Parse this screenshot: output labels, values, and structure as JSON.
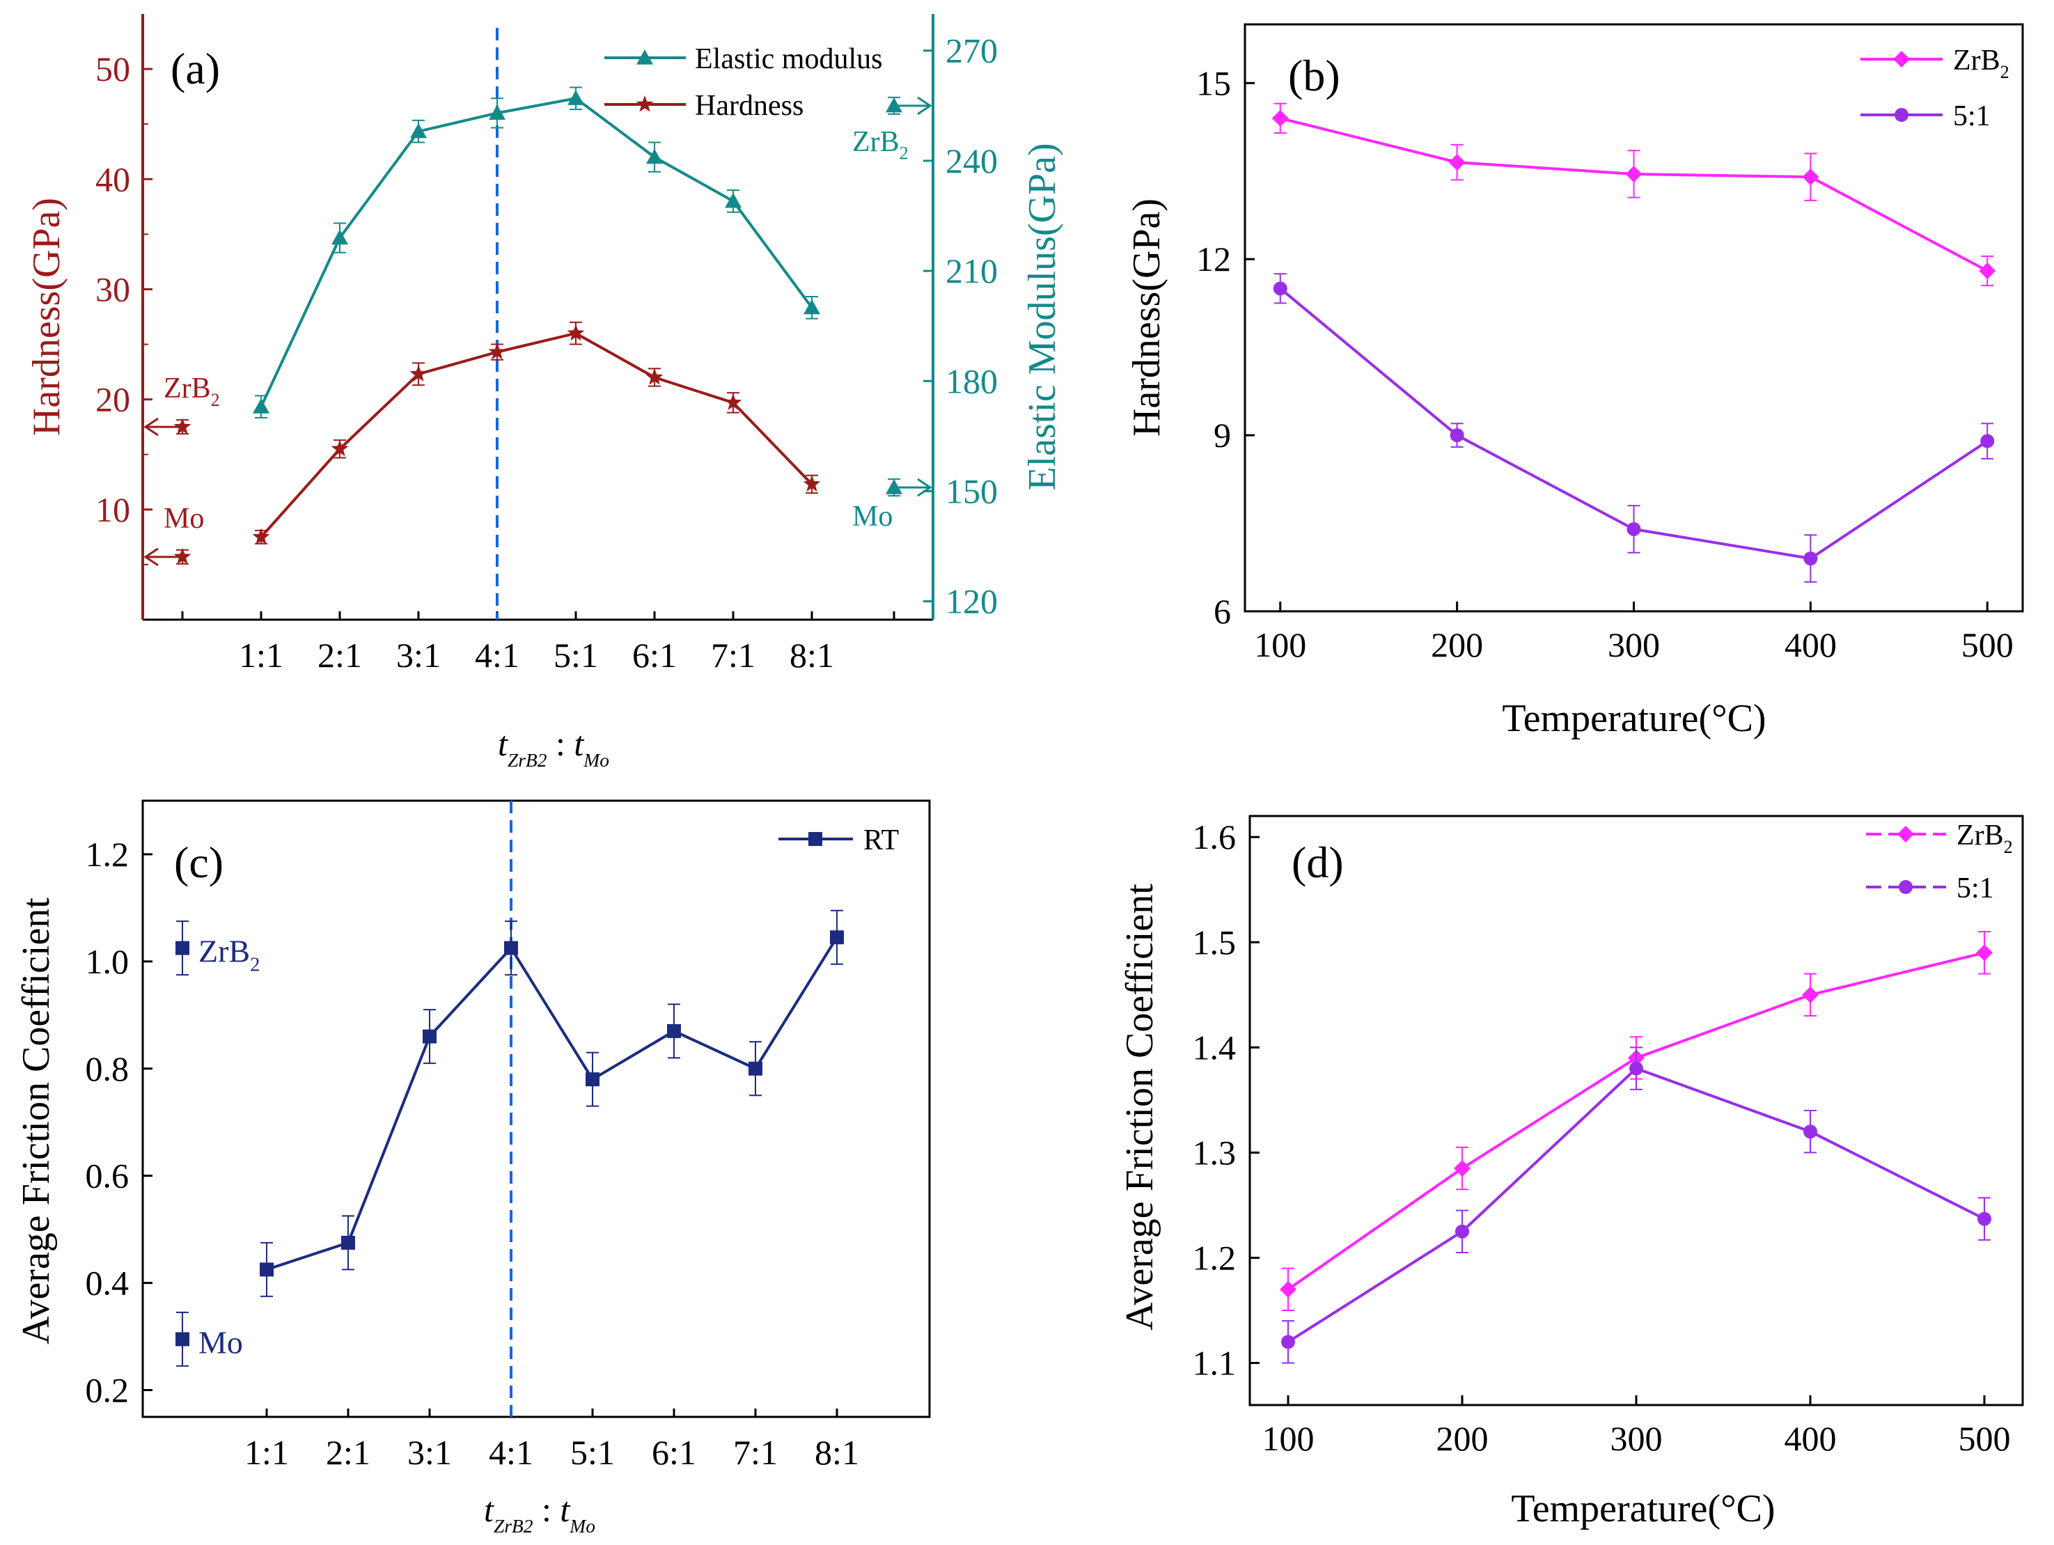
{
  "colors": {
    "hardness": "#9b1b1b",
    "modulus": "#138a8a",
    "zrb2": "#ff26ff",
    "ratio51": "#9a2ee6",
    "rt": "#1c2b80",
    "vline": "#1565e0",
    "axis": "#000000"
  },
  "chart_data": [
    {
      "panel": "a",
      "type": "line",
      "panel_label": "(a)",
      "categories": [
        "1:1",
        "2:1",
        "3:1",
        "4:1",
        "5:1",
        "6:1",
        "7:1",
        "8:1"
      ],
      "xlabel": "t_ZrB2 : t_Mo",
      "ylabel": "Hardness(GPa)",
      "ylim": [
        0,
        55
      ],
      "yticks": [
        10,
        20,
        30,
        40,
        50
      ],
      "y2label": "Elastic Modulus(GPa)",
      "y2lim": [
        115,
        280
      ],
      "y2ticks": [
        120,
        150,
        180,
        210,
        240,
        270
      ],
      "highlight_category": "4:1",
      "series": [
        {
          "name": "Elastic modulus",
          "axis": "right",
          "marker": "triangle",
          "color": "modulus",
          "values": [
            173,
            219,
            248,
            253,
            257,
            241,
            229,
            200
          ],
          "errors": [
            3,
            4,
            3,
            4,
            3,
            4,
            3,
            3
          ]
        },
        {
          "name": "Hardness",
          "axis": "left",
          "marker": "star",
          "color": "hardness",
          "values": [
            7.5,
            15.5,
            22.3,
            24.3,
            26,
            22,
            19.7,
            12.3
          ],
          "errors": [
            0.6,
            0.8,
            1,
            0.7,
            1,
            0.8,
            0.9,
            0.8
          ]
        }
      ],
      "references": [
        {
          "label": "ZrB",
          "sub": "2",
          "axis": "left",
          "value": 17.5,
          "color": "hardness"
        },
        {
          "label": "Mo",
          "sub": "",
          "axis": "left",
          "value": 5.7,
          "color": "hardness"
        },
        {
          "label": "ZrB",
          "sub": "2",
          "axis": "right",
          "value": 255,
          "color": "modulus"
        },
        {
          "label": "Mo",
          "sub": "",
          "axis": "right",
          "value": 151,
          "color": "modulus"
        }
      ]
    },
    {
      "panel": "b",
      "type": "line",
      "panel_label": "(b)",
      "x": [
        100,
        200,
        300,
        400,
        500
      ],
      "xlim": [
        80,
        520
      ],
      "xticks": [
        100,
        200,
        300,
        400,
        500
      ],
      "xlabel": "Temperature(°C)",
      "ylabel": "Hardness(GPa)",
      "ylim": [
        6,
        16
      ],
      "yticks": [
        6,
        9,
        12,
        15
      ],
      "series": [
        {
          "name": "ZrB",
          "sub": "2",
          "marker": "diamond",
          "color": "zrb2",
          "values": [
            14.4,
            13.65,
            13.45,
            13.4,
            11.8
          ],
          "errors": [
            0.25,
            0.3,
            0.4,
            0.4,
            0.25
          ]
        },
        {
          "name": "5:1",
          "sub": "",
          "marker": "circle",
          "color": "ratio51",
          "values": [
            11.5,
            9.0,
            7.4,
            6.9,
            8.9
          ],
          "errors": [
            0.25,
            0.2,
            0.4,
            0.4,
            0.3
          ]
        }
      ]
    },
    {
      "panel": "c",
      "type": "line",
      "panel_label": "(c)",
      "categories": [
        "1:1",
        "2:1",
        "3:1",
        "4:1",
        "5:1",
        "6:1",
        "7:1",
        "8:1"
      ],
      "xlabel": "t_ZrB2 : t_Mo",
      "ylabel": "Average Friction Coefficient",
      "ylim": [
        0.15,
        1.3
      ],
      "yticks": [
        0.2,
        0.4,
        0.6,
        0.8,
        1.0,
        1.2
      ],
      "highlight_category": "4:1",
      "series": [
        {
          "name": "RT",
          "marker": "square",
          "color": "rt",
          "values": [
            0.425,
            0.475,
            0.86,
            1.025,
            0.78,
            0.87,
            0.8,
            1.045
          ],
          "errors": [
            0.05,
            0.05,
            0.05,
            0.05,
            0.05,
            0.05,
            0.05,
            0.05
          ]
        }
      ],
      "references": [
        {
          "label": "ZrB",
          "sub": "2",
          "value": 1.025,
          "error": 0.05
        },
        {
          "label": "Mo",
          "sub": "",
          "value": 0.295,
          "error": 0.05
        }
      ]
    },
    {
      "panel": "d",
      "type": "line",
      "panel_label": "(d)",
      "x": [
        100,
        200,
        300,
        400,
        500
      ],
      "xlim": [
        78,
        522
      ],
      "xticks": [
        100,
        200,
        300,
        400,
        500
      ],
      "xlabel": "Temperature(°C)",
      "ylabel": "Average Friction Coefficient",
      "ylim": [
        1.06,
        1.62
      ],
      "yticks": [
        1.1,
        1.2,
        1.3,
        1.4,
        1.5,
        1.6
      ],
      "series": [
        {
          "name": "ZrB",
          "sub": "2",
          "marker": "diamond",
          "color": "zrb2",
          "values": [
            1.17,
            1.285,
            1.39,
            1.45,
            1.49
          ],
          "errors": [
            0.02,
            0.02,
            0.02,
            0.02,
            0.02
          ]
        },
        {
          "name": "5:1",
          "sub": "",
          "marker": "circle",
          "color": "ratio51",
          "values": [
            1.12,
            1.225,
            1.38,
            1.32,
            1.237
          ],
          "errors": [
            0.02,
            0.02,
            0.02,
            0.02,
            0.02
          ]
        }
      ]
    }
  ]
}
